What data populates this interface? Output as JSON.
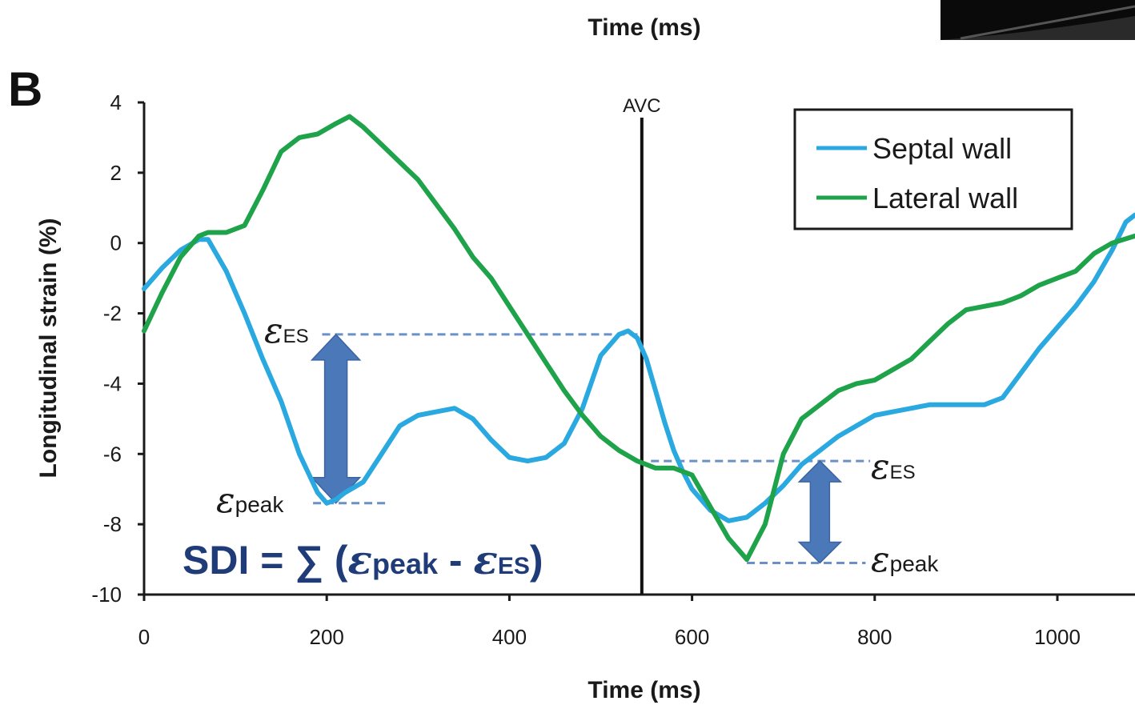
{
  "panel_label": "B",
  "chart_data": {
    "type": "line",
    "title": "",
    "xlabel": "Time (ms)",
    "ylabel": "Longitudinal strain (%)",
    "top_partial_xlabel": "Time (ms)",
    "xlim": [
      0,
      1085
    ],
    "ylim": [
      -10,
      4
    ],
    "xticks": [
      0,
      200,
      400,
      600,
      800,
      1000
    ],
    "yticks": [
      4,
      2,
      0,
      -2,
      -4,
      -6,
      -8,
      -10
    ],
    "grid": false,
    "legend_position": "top-right",
    "colors": {
      "septal": "#2aa8e0",
      "lateral": "#1fa34a",
      "guides": "#6b8fc7",
      "arrow": "#4a78b8",
      "formula": "#1f3b78"
    },
    "series": [
      {
        "name": "Septal wall",
        "x": [
          0,
          20,
          40,
          60,
          70,
          90,
          110,
          130,
          150,
          170,
          190,
          200,
          210,
          220,
          240,
          260,
          280,
          300,
          320,
          340,
          360,
          380,
          400,
          420,
          440,
          460,
          480,
          500,
          520,
          530,
          540,
          550,
          560,
          570,
          580,
          590,
          600,
          620,
          640,
          660,
          680,
          700,
          720,
          740,
          760,
          780,
          800,
          820,
          840,
          860,
          880,
          900,
          920,
          940,
          960,
          980,
          1000,
          1020,
          1040,
          1060,
          1075,
          1085
        ],
        "values": [
          -1.3,
          -0.7,
          -0.2,
          0.1,
          0.1,
          -0.8,
          -2.0,
          -3.3,
          -4.5,
          -6.0,
          -7.1,
          -7.4,
          -7.3,
          -7.1,
          -6.8,
          -6.0,
          -5.2,
          -4.9,
          -4.8,
          -4.7,
          -5.0,
          -5.6,
          -6.1,
          -6.2,
          -6.1,
          -5.7,
          -4.7,
          -3.2,
          -2.6,
          -2.5,
          -2.7,
          -3.3,
          -4.2,
          -5.1,
          -5.9,
          -6.5,
          -7.0,
          -7.6,
          -7.9,
          -7.8,
          -7.4,
          -6.9,
          -6.3,
          -5.9,
          -5.5,
          -5.2,
          -4.9,
          -4.8,
          -4.7,
          -4.6,
          -4.6,
          -4.6,
          -4.6,
          -4.4,
          -3.7,
          -3.0,
          -2.4,
          -1.8,
          -1.1,
          -0.2,
          0.6,
          0.8
        ]
      },
      {
        "name": "Lateral wall",
        "x": [
          0,
          20,
          40,
          60,
          70,
          90,
          110,
          130,
          150,
          170,
          190,
          210,
          225,
          240,
          260,
          280,
          300,
          320,
          340,
          360,
          380,
          400,
          420,
          440,
          460,
          480,
          500,
          520,
          540,
          560,
          580,
          600,
          620,
          640,
          660,
          680,
          700,
          720,
          740,
          760,
          780,
          800,
          820,
          840,
          860,
          880,
          900,
          920,
          940,
          960,
          980,
          1000,
          1020,
          1040,
          1060,
          1085
        ],
        "values": [
          -2.5,
          -1.4,
          -0.4,
          0.2,
          0.3,
          0.3,
          0.5,
          1.5,
          2.6,
          3.0,
          3.1,
          3.4,
          3.6,
          3.3,
          2.8,
          2.3,
          1.8,
          1.1,
          0.4,
          -0.4,
          -1.0,
          -1.8,
          -2.6,
          -3.4,
          -4.2,
          -4.9,
          -5.5,
          -5.9,
          -6.2,
          -6.4,
          -6.4,
          -6.6,
          -7.5,
          -8.4,
          -9.0,
          -8.0,
          -6.0,
          -5.0,
          -4.6,
          -4.2,
          -4.0,
          -3.9,
          -3.6,
          -3.3,
          -2.8,
          -2.3,
          -1.9,
          -1.8,
          -1.7,
          -1.5,
          -1.2,
          -1.0,
          -0.8,
          -0.3,
          0.0,
          0.2
        ]
      }
    ],
    "annotations": {
      "avc": {
        "label": "AVC",
        "x": 545
      },
      "left": {
        "es_y": -2.6,
        "peak_y": -7.4,
        "arrow_x": 210,
        "es_x_start": 195,
        "es_x_end": 545,
        "peak_x_start": 185,
        "peak_x_end": 265
      },
      "right": {
        "es_y": -6.2,
        "peak_y": -9.1,
        "arrow_x": 740,
        "es_x_start": 555,
        "es_x_end": 795,
        "peak_x_start": 660,
        "peak_x_end": 790
      }
    },
    "labels": {
      "epsilon": "ε",
      "es": "ES",
      "peak": "peak",
      "formula_prefix": "SDI = ∑ (",
      "formula_minus": " - ",
      "formula_suffix": ")"
    }
  }
}
